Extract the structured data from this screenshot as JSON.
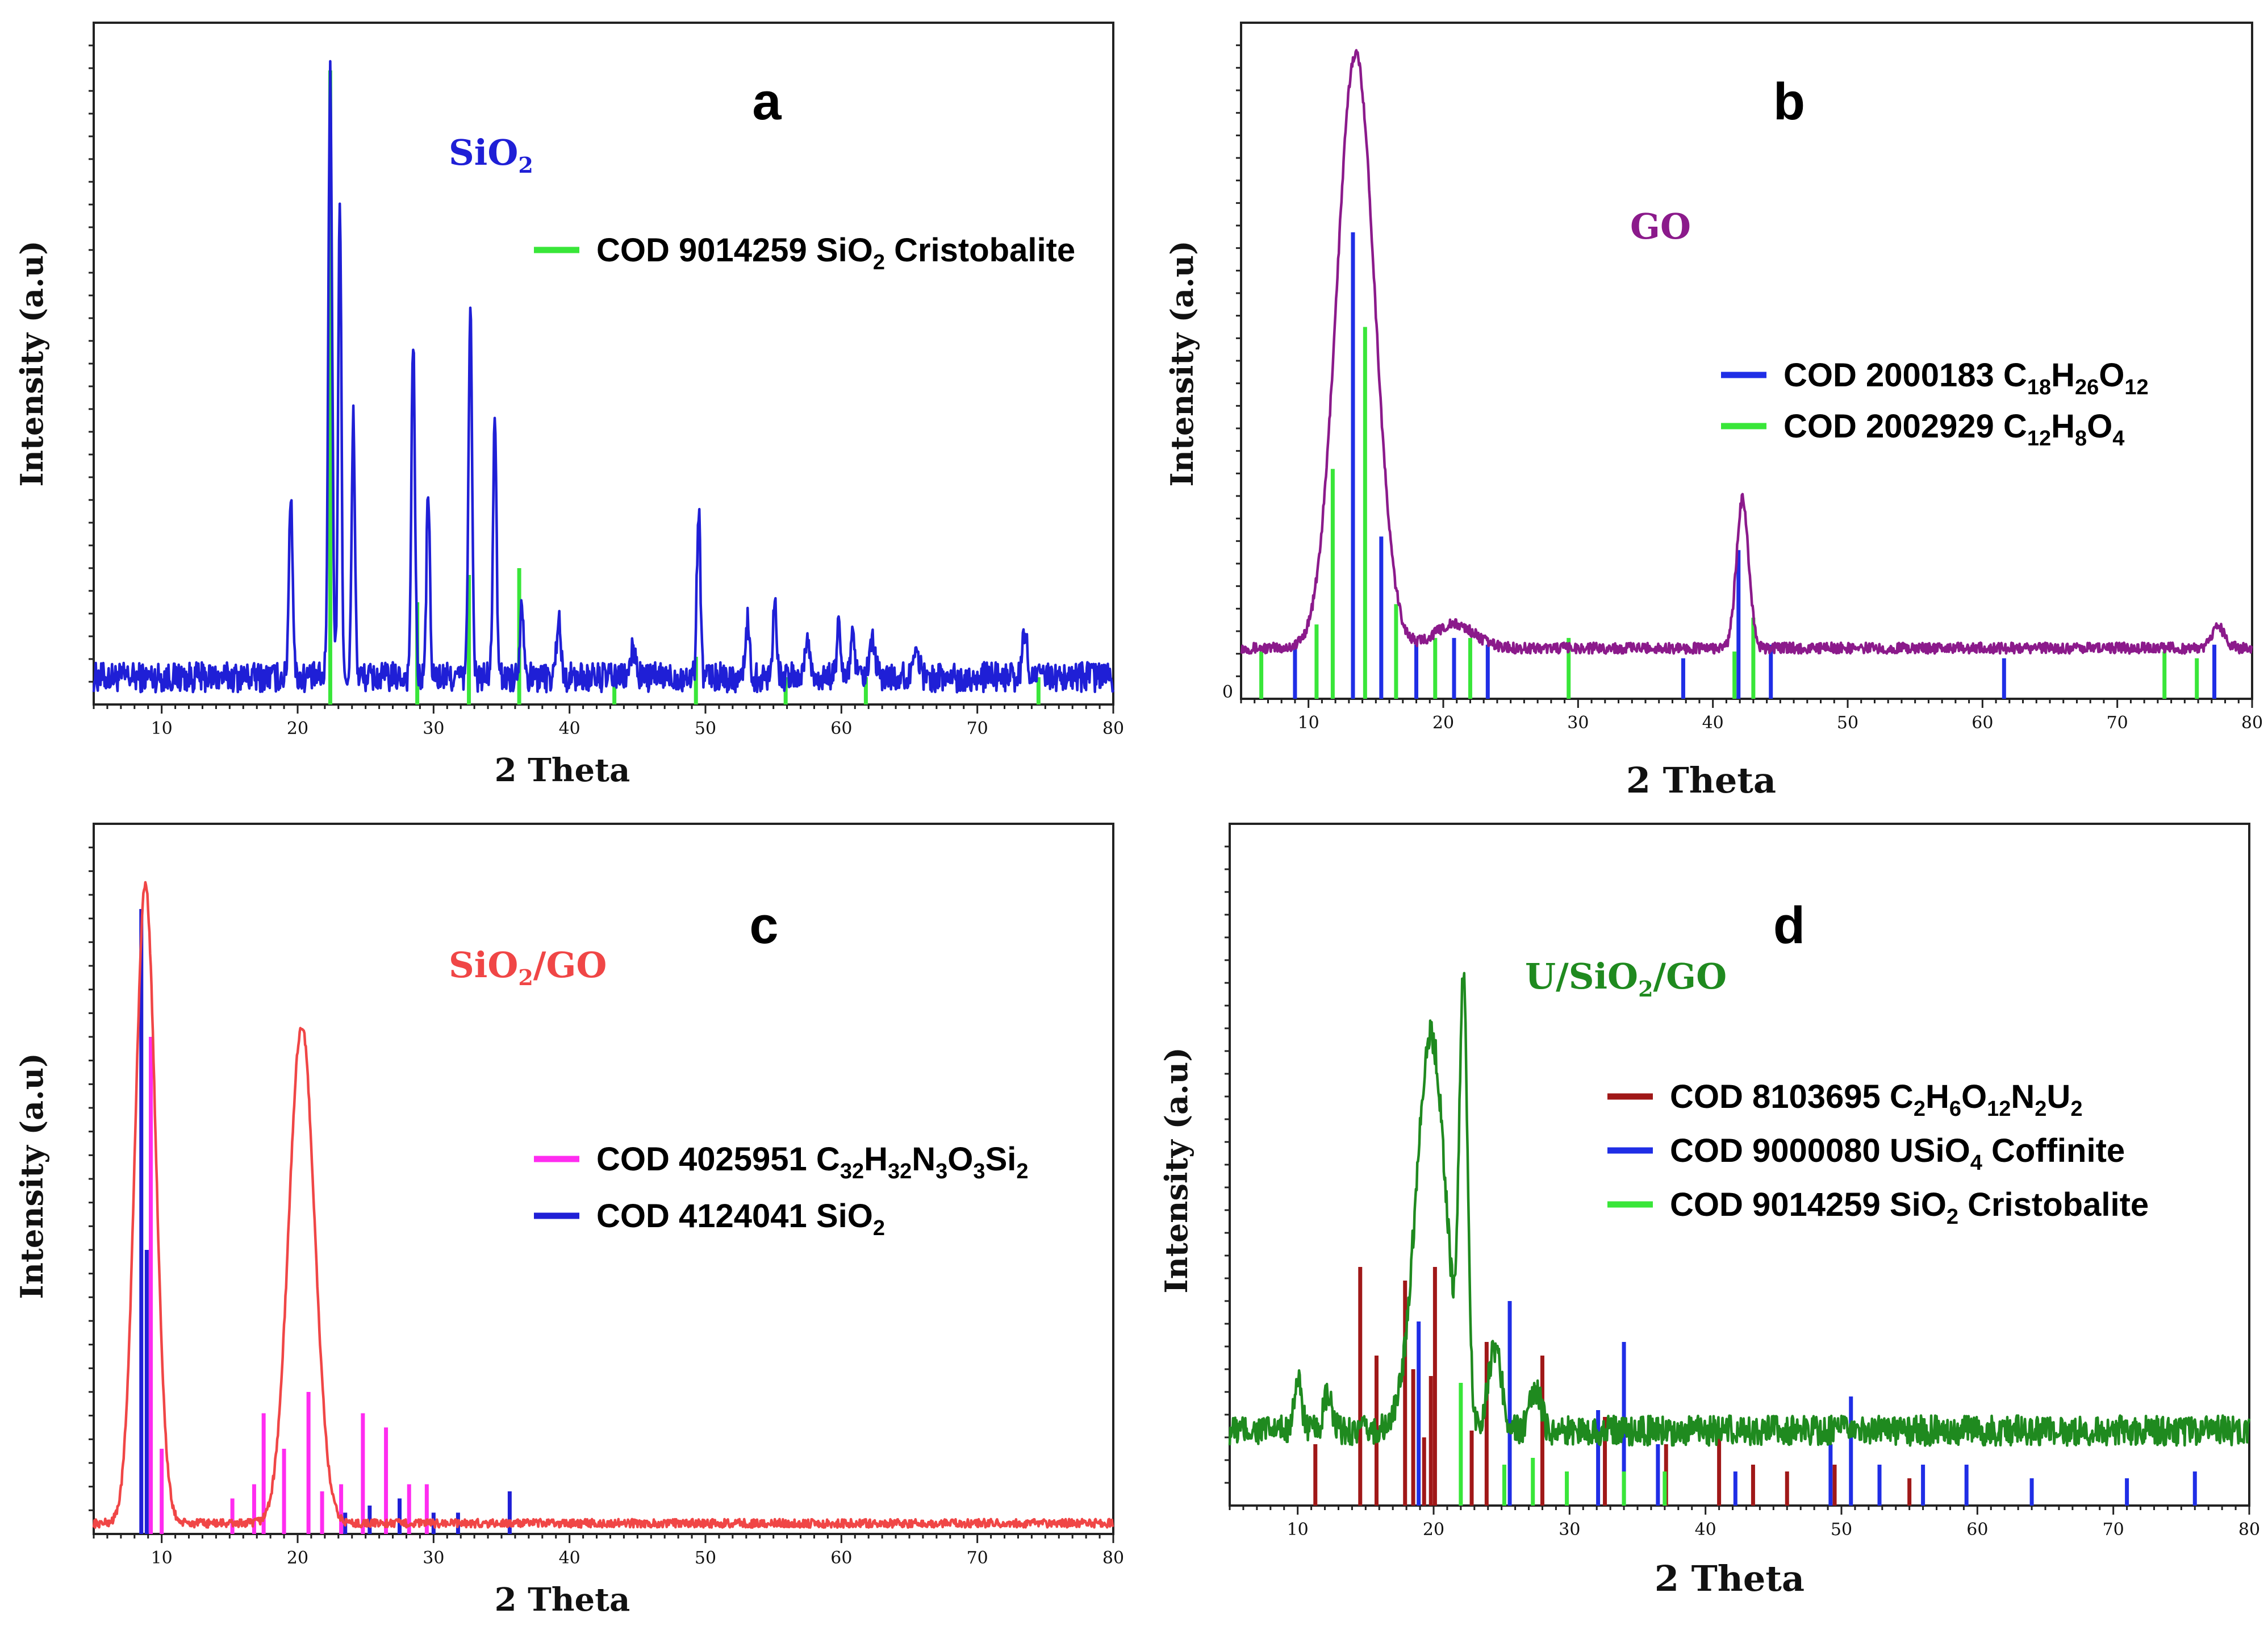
{
  "chart_data": [
    {
      "id": "a",
      "type": "line",
      "panel_label": "a",
      "sample_label": "SiO2",
      "sample_color": "#1f1fd6",
      "xlabel": "2 Theta",
      "ylabel": "Intensity (a.u)",
      "xlim": [
        5,
        80
      ],
      "ylim": [
        0,
        100
      ],
      "xticks": [
        10,
        20,
        30,
        40,
        50,
        60,
        70,
        80
      ],
      "series": [
        {
          "name": "SiO2",
          "color": "#1f1fd6",
          "baseline": 4,
          "noise": 2.2,
          "peaks": [
            {
              "x": 19.5,
              "h": 27,
              "w": 0.14
            },
            {
              "x": 22.4,
              "h": 89,
              "w": 0.14
            },
            {
              "x": 23.1,
              "h": 70,
              "w": 0.12
            },
            {
              "x": 24.1,
              "h": 38,
              "w": 0.12
            },
            {
              "x": 28.5,
              "h": 49,
              "w": 0.13
            },
            {
              "x": 29.6,
              "h": 28,
              "w": 0.12
            },
            {
              "x": 32.7,
              "h": 55,
              "w": 0.13
            },
            {
              "x": 34.5,
              "h": 37,
              "w": 0.13
            },
            {
              "x": 36.5,
              "h": 11,
              "w": 0.15
            },
            {
              "x": 39.2,
              "h": 9,
              "w": 0.15
            },
            {
              "x": 44.7,
              "h": 4,
              "w": 0.2
            },
            {
              "x": 49.5,
              "h": 25,
              "w": 0.13
            },
            {
              "x": 53.1,
              "h": 8,
              "w": 0.15
            },
            {
              "x": 55.1,
              "h": 11,
              "w": 0.15
            },
            {
              "x": 57.5,
              "h": 5,
              "w": 0.2
            },
            {
              "x": 59.8,
              "h": 7,
              "w": 0.15
            },
            {
              "x": 60.8,
              "h": 6,
              "w": 0.15
            },
            {
              "x": 62.3,
              "h": 5,
              "w": 0.2
            },
            {
              "x": 65.5,
              "h": 5,
              "w": 0.2
            },
            {
              "x": 73.5,
              "h": 6,
              "w": 0.2
            }
          ]
        }
      ],
      "references": [
        {
          "name": "COD 9014259 SiO2 Cristobalite",
          "color": "#39e639",
          "sticks": [
            [
              22.4,
              93
            ],
            [
              28.8,
              15
            ],
            [
              32.6,
              19
            ],
            [
              36.3,
              20
            ],
            [
              43.3,
              4
            ],
            [
              49.3,
              7
            ],
            [
              55.9,
              4
            ],
            [
              61.8,
              4
            ],
            [
              74.5,
              4
            ]
          ]
        }
      ],
      "legend_entries": [
        {
          "color": "#39e639",
          "parts": [
            [
              "COD 9014259 SiO",
              ""
            ],
            [
              "2",
              "sub"
            ],
            [
              " Cristobalite",
              ""
            ]
          ]
        }
      ]
    },
    {
      "id": "b",
      "type": "line",
      "panel_label": "b",
      "sample_label": "GO",
      "sample_color": "#8b1a8b",
      "xlabel": "2 Theta",
      "ylabel": "Intensity (a.u)",
      "xlim": [
        5,
        80
      ],
      "ylim": [
        0,
        100
      ],
      "xticks": [
        10,
        20,
        30,
        40,
        50,
        60,
        70,
        80
      ],
      "series": [
        {
          "name": "GO",
          "color": "#8b1a8b",
          "baseline": 7.5,
          "noise": 0.8,
          "peaks": [
            {
              "x": 13.5,
              "h": 88,
              "w": 1.4
            },
            {
              "x": 20.8,
              "h": 3.5,
              "w": 1.5
            },
            {
              "x": 42.2,
              "h": 22,
              "w": 0.45
            },
            {
              "x": 77.5,
              "h": 3,
              "w": 0.5
            }
          ]
        }
      ],
      "references": [
        {
          "name": "COD 2000183 C18H26O12",
          "color": "#1f2ee6",
          "sticks": [
            [
              9.0,
              8
            ],
            [
              13.3,
              69
            ],
            [
              15.4,
              24
            ],
            [
              18.0,
              8
            ],
            [
              20.8,
              9
            ],
            [
              23.3,
              8
            ],
            [
              37.8,
              6
            ],
            [
              41.9,
              22
            ],
            [
              44.3,
              8
            ],
            [
              61.6,
              6
            ],
            [
              77.2,
              8
            ]
          ]
        },
        {
          "name": "COD 2002929 C12H8O4",
          "color": "#39e639",
          "sticks": [
            [
              6.5,
              7
            ],
            [
              10.6,
              11
            ],
            [
              11.8,
              34
            ],
            [
              14.2,
              55
            ],
            [
              16.5,
              14
            ],
            [
              19.4,
              9
            ],
            [
              22.0,
              9
            ],
            [
              29.3,
              9
            ],
            [
              41.6,
              7
            ],
            [
              43.0,
              12
            ],
            [
              73.5,
              7
            ],
            [
              75.9,
              6
            ]
          ]
        }
      ],
      "legend_entries": [
        {
          "color": "#1f2ee6",
          "parts": [
            [
              "COD 2000183 C",
              ""
            ],
            [
              "18",
              "sub"
            ],
            [
              "H",
              ""
            ],
            [
              "26",
              "sub"
            ],
            [
              "O",
              ""
            ],
            [
              "12",
              "sub"
            ]
          ]
        },
        {
          "color": "#39e639",
          "parts": [
            [
              "COD 2002929 C",
              ""
            ],
            [
              "12",
              "sub"
            ],
            [
              "H",
              ""
            ],
            [
              "8",
              "sub"
            ],
            [
              "O",
              ""
            ],
            [
              "4",
              "sub"
            ]
          ]
        }
      ]
    },
    {
      "id": "c",
      "type": "line",
      "panel_label": "c",
      "sample_label": "SiO2/GO",
      "sample_color": "#f04646",
      "xlabel": "2 Theta",
      "ylabel": "Intensity (a.u)",
      "xlim": [
        5,
        80
      ],
      "ylim": [
        0,
        100
      ],
      "xticks": [
        10,
        20,
        30,
        40,
        50,
        60,
        70,
        80
      ],
      "series": [
        {
          "name": "SiO2/GO",
          "color": "#f04646",
          "baseline": 1.5,
          "noise": 0.6,
          "peaks": [
            {
              "x": 8.8,
              "h": 90,
              "w": 0.75
            },
            {
              "x": 20.3,
              "h": 70,
              "w": 0.95
            }
          ]
        }
      ],
      "references": [
        {
          "name": "COD 4025951 C32H32N3O3Si2",
          "color": "#ff2cf0",
          "sticks": [
            [
              9.2,
              70
            ],
            [
              10.0,
              12
            ],
            [
              15.2,
              5
            ],
            [
              16.8,
              7
            ],
            [
              17.5,
              17
            ],
            [
              19.0,
              12
            ],
            [
              20.8,
              20
            ],
            [
              21.8,
              6
            ],
            [
              23.2,
              7
            ],
            [
              24.8,
              17
            ],
            [
              26.5,
              15
            ],
            [
              28.2,
              7
            ],
            [
              29.5,
              7
            ]
          ]
        },
        {
          "name": "COD 4124041 SiO2",
          "color": "#1f1fd6",
          "sticks": [
            [
              8.5,
              88
            ],
            [
              8.9,
              40
            ],
            [
              23.5,
              3
            ],
            [
              25.3,
              4
            ],
            [
              27.5,
              5
            ],
            [
              30.0,
              3
            ],
            [
              31.8,
              3
            ],
            [
              35.6,
              6
            ]
          ]
        }
      ],
      "legend_entries": [
        {
          "color": "#ff2cf0",
          "parts": [
            [
              "COD 4025951 C",
              ""
            ],
            [
              "32",
              "sub"
            ],
            [
              "H",
              ""
            ],
            [
              "32",
              "sub"
            ],
            [
              "N",
              ""
            ],
            [
              "3",
              "sub"
            ],
            [
              "O",
              ""
            ],
            [
              "3",
              "sub"
            ],
            [
              "Si",
              ""
            ],
            [
              "2",
              "sub"
            ]
          ]
        },
        {
          "color": "#1f1fd6",
          "parts": [
            [
              "COD 4124041 SiO",
              ""
            ],
            [
              "2",
              "sub"
            ]
          ]
        }
      ]
    },
    {
      "id": "d",
      "type": "line",
      "panel_label": "d",
      "sample_label": "U/SiO2/GO",
      "sample_color": "#1f8a1f",
      "xlabel": "2 Theta",
      "ylabel": "Intensity (a.u)",
      "xlim": [
        5,
        80
      ],
      "ylim": [
        0,
        100
      ],
      "xticks": [
        10,
        20,
        30,
        40,
        50,
        60,
        70,
        80
      ],
      "series": [
        {
          "name": "U/SiO2/GO",
          "color": "#1f8a1f",
          "baseline": 11,
          "noise": 2.2,
          "peaks": [
            {
              "x": 10.0,
              "h": 7,
              "w": 0.3
            },
            {
              "x": 12.2,
              "h": 5,
              "w": 0.3
            },
            {
              "x": 19.8,
              "h": 58,
              "w": 1.1
            },
            {
              "x": 22.2,
              "h": 62,
              "w": 0.3
            },
            {
              "x": 24.5,
              "h": 12,
              "w": 0.5
            },
            {
              "x": 27.5,
              "h": 6,
              "w": 0.4
            }
          ]
        }
      ],
      "references": [
        {
          "name": "COD 8103695 C2H6O12N2U2",
          "color": "#a01818",
          "sticks": [
            [
              11.3,
              9
            ],
            [
              14.6,
              35
            ],
            [
              15.8,
              22
            ],
            [
              17.9,
              33
            ],
            [
              18.5,
              20
            ],
            [
              19.3,
              10
            ],
            [
              19.8,
              19
            ],
            [
              20.1,
              35
            ],
            [
              22.8,
              11
            ],
            [
              23.9,
              24
            ],
            [
              28.0,
              22
            ],
            [
              32.6,
              13
            ],
            [
              37.1,
              9
            ],
            [
              41.0,
              10
            ],
            [
              43.5,
              6
            ],
            [
              46.0,
              5
            ],
            [
              49.5,
              6
            ],
            [
              55.0,
              4
            ]
          ]
        },
        {
          "name": "COD 9000080 USiO4 Coffinite",
          "color": "#1f2ee6",
          "sticks": [
            [
              18.9,
              27
            ],
            [
              25.6,
              30
            ],
            [
              32.1,
              14
            ],
            [
              34.0,
              24
            ],
            [
              36.5,
              9
            ],
            [
              42.2,
              5
            ],
            [
              49.2,
              9
            ],
            [
              50.7,
              16
            ],
            [
              52.8,
              6
            ],
            [
              56.0,
              6
            ],
            [
              59.2,
              6
            ],
            [
              64.0,
              4
            ],
            [
              71.0,
              4
            ],
            [
              76.0,
              5
            ]
          ]
        },
        {
          "name": "COD 9014259 SiO2 Cristobalite",
          "color": "#39e639",
          "sticks": [
            [
              22.0,
              18
            ],
            [
              25.2,
              6
            ],
            [
              27.3,
              7
            ],
            [
              29.8,
              5
            ],
            [
              34.0,
              5
            ],
            [
              37.0,
              5
            ]
          ]
        }
      ],
      "legend_entries": [
        {
          "color": "#a01818",
          "parts": [
            [
              "COD 8103695 C",
              ""
            ],
            [
              "2",
              "sub"
            ],
            [
              "H",
              ""
            ],
            [
              "6",
              "sub"
            ],
            [
              "O",
              ""
            ],
            [
              "12",
              "sub"
            ],
            [
              "N",
              ""
            ],
            [
              "2",
              "sub"
            ],
            [
              "U",
              ""
            ],
            [
              "2",
              "sub"
            ]
          ]
        },
        {
          "color": "#1f2ee6",
          "parts": [
            [
              "COD 9000080 USiO",
              ""
            ],
            [
              "4",
              "sub"
            ],
            [
              " Coffinite",
              ""
            ]
          ]
        },
        {
          "color": "#39e639",
          "parts": [
            [
              "COD 9014259 SiO",
              ""
            ],
            [
              "2",
              "sub"
            ],
            [
              " Cristobalite",
              ""
            ]
          ]
        }
      ]
    }
  ]
}
